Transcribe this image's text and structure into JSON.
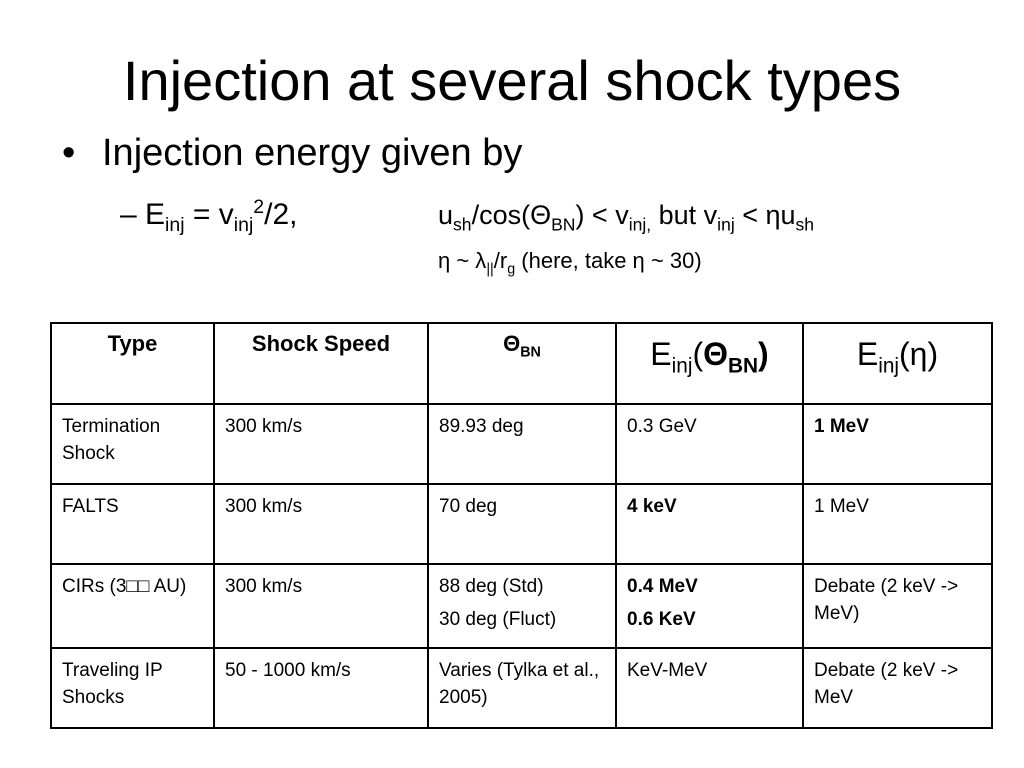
{
  "title": "Injection at several shock types",
  "bullet": "Injection energy given by",
  "sub_bullet": {
    "dash": "–",
    "formula": [
      "E",
      "inj",
      " = v",
      "inj",
      "2",
      "/2,"
    ],
    "condition": [
      "u",
      "sh",
      "/cos(Θ",
      "BN",
      ") < v",
      "inj,",
      " but v",
      "inj",
      " < ηu",
      "sh"
    ],
    "note": [
      "η ~ λ",
      "||",
      "/r",
      "g",
      " (here, take η ~ 30)"
    ]
  },
  "table": {
    "header": [
      [
        "Type"
      ],
      [
        "Shock Speed"
      ],
      [
        "Θ",
        "BN"
      ],
      [
        "E",
        "inj",
        "(",
        "Θ",
        "BN",
        ")"
      ],
      [
        "E",
        "inj",
        "(",
        "η",
        ")"
      ]
    ],
    "rows": [
      [
        [
          "Termination Shock"
        ],
        [
          "300 km/s"
        ],
        [
          "89.93 deg"
        ],
        [
          "0.3 GeV"
        ],
        [
          "1 MeV"
        ]
      ],
      [
        [
          "FALTS"
        ],
        [
          "300 km/s"
        ],
        [
          "70 deg"
        ],
        [
          "4 keV"
        ],
        [
          "1 MeV"
        ]
      ],
      [
        [
          "CIRs (3□□ AU)"
        ],
        [
          "300 km/s"
        ],
        [
          "88 deg (Std)",
          "30 deg (Fluct)"
        ],
        [
          "0.4 MeV",
          "0.6 KeV"
        ],
        [
          "Debate (2 keV -> MeV)"
        ]
      ],
      [
        [
          "Traveling IP Shocks"
        ],
        [
          "50 - 1000 km/s"
        ],
        [
          "Varies (Tylka et al., 2005)"
        ],
        [
          "KeV-MeV"
        ],
        [
          "Debate (2 keV -> MeV"
        ]
      ]
    ]
  }
}
